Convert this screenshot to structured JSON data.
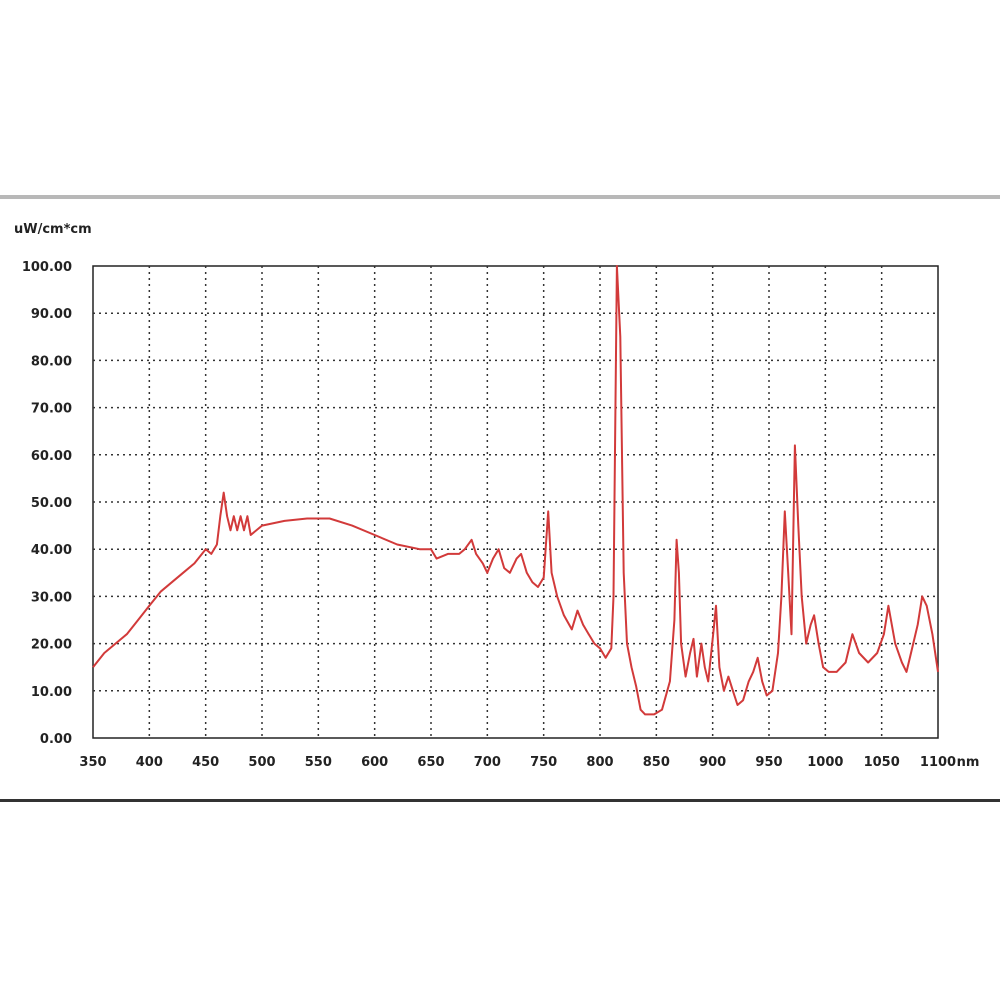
{
  "chart_data": {
    "type": "line",
    "ylabel": "uW/cm*cm",
    "xlabel": "nm",
    "xlim": [
      350,
      1100
    ],
    "ylim": [
      0,
      100
    ],
    "grid": true,
    "line_color": "#d23a3a",
    "x_ticks": [
      "350",
      "400",
      "450",
      "500",
      "550",
      "600",
      "650",
      "700",
      "750",
      "800",
      "850",
      "900",
      "950",
      "1000",
      "1050",
      "1100"
    ],
    "y_ticks": [
      "0.00",
      "10.00",
      "20.00",
      "30.00",
      "40.00",
      "50.00",
      "60.00",
      "70.00",
      "80.00",
      "90.00",
      "100.00"
    ],
    "series": [
      {
        "points": [
          [
            350,
            15
          ],
          [
            360,
            18
          ],
          [
            370,
            20
          ],
          [
            380,
            22
          ],
          [
            390,
            25
          ],
          [
            400,
            28
          ],
          [
            410,
            31
          ],
          [
            420,
            33
          ],
          [
            430,
            35
          ],
          [
            440,
            37
          ],
          [
            450,
            40
          ],
          [
            455,
            39
          ],
          [
            460,
            41
          ],
          [
            463,
            47
          ],
          [
            466,
            52
          ],
          [
            469,
            47
          ],
          [
            472,
            44
          ],
          [
            475,
            47
          ],
          [
            478,
            44
          ],
          [
            481,
            47
          ],
          [
            484,
            44
          ],
          [
            487,
            47
          ],
          [
            490,
            43
          ],
          [
            500,
            45
          ],
          [
            520,
            46
          ],
          [
            540,
            46.5
          ],
          [
            560,
            46.5
          ],
          [
            580,
            45
          ],
          [
            600,
            43
          ],
          [
            620,
            41
          ],
          [
            640,
            40
          ],
          [
            650,
            40
          ],
          [
            655,
            38
          ],
          [
            665,
            39
          ],
          [
            675,
            39
          ],
          [
            680,
            40
          ],
          [
            686,
            42
          ],
          [
            690,
            39
          ],
          [
            696,
            37
          ],
          [
            700,
            35
          ],
          [
            705,
            38
          ],
          [
            710,
            40
          ],
          [
            715,
            36
          ],
          [
            720,
            35
          ],
          [
            726,
            38
          ],
          [
            730,
            39
          ],
          [
            735,
            35
          ],
          [
            740,
            33
          ],
          [
            745,
            32
          ],
          [
            750,
            34
          ],
          [
            754,
            48
          ],
          [
            757,
            35
          ],
          [
            762,
            30
          ],
          [
            768,
            26
          ],
          [
            775,
            23
          ],
          [
            780,
            27
          ],
          [
            785,
            24
          ],
          [
            790,
            22
          ],
          [
            795,
            20
          ],
          [
            800,
            19
          ],
          [
            805,
            17
          ],
          [
            810,
            19
          ],
          [
            812,
            30
          ],
          [
            815,
            100
          ],
          [
            818,
            85
          ],
          [
            821,
            35
          ],
          [
            824,
            20
          ],
          [
            828,
            15
          ],
          [
            832,
            11
          ],
          [
            836,
            6
          ],
          [
            840,
            5
          ],
          [
            848,
            5
          ],
          [
            855,
            6
          ],
          [
            862,
            12
          ],
          [
            866,
            25
          ],
          [
            868,
            42
          ],
          [
            870,
            35
          ],
          [
            872,
            20
          ],
          [
            876,
            13
          ],
          [
            880,
            18
          ],
          [
            883,
            21
          ],
          [
            886,
            13
          ],
          [
            890,
            20
          ],
          [
            893,
            15
          ],
          [
            896,
            12
          ],
          [
            900,
            21
          ],
          [
            903,
            28
          ],
          [
            906,
            15
          ],
          [
            910,
            10
          ],
          [
            914,
            13
          ],
          [
            918,
            10
          ],
          [
            922,
            7
          ],
          [
            927,
            8
          ],
          [
            932,
            12
          ],
          [
            936,
            14
          ],
          [
            940,
            17
          ],
          [
            944,
            12
          ],
          [
            948,
            9
          ],
          [
            953,
            10
          ],
          [
            958,
            18
          ],
          [
            961,
            30
          ],
          [
            964,
            48
          ],
          [
            967,
            35
          ],
          [
            970,
            22
          ],
          [
            973,
            62
          ],
          [
            976,
            45
          ],
          [
            979,
            30
          ],
          [
            983,
            20
          ],
          [
            987,
            24
          ],
          [
            990,
            26
          ],
          [
            994,
            20
          ],
          [
            998,
            15
          ],
          [
            1003,
            14
          ],
          [
            1010,
            14
          ],
          [
            1018,
            16
          ],
          [
            1024,
            22
          ],
          [
            1030,
            18
          ],
          [
            1038,
            16
          ],
          [
            1046,
            18
          ],
          [
            1052,
            22
          ],
          [
            1056,
            28
          ],
          [
            1062,
            20
          ],
          [
            1068,
            16
          ],
          [
            1072,
            14
          ],
          [
            1076,
            18
          ],
          [
            1082,
            24
          ],
          [
            1086,
            30
          ],
          [
            1090,
            28
          ],
          [
            1095,
            22
          ],
          [
            1100,
            14
          ]
        ]
      }
    ]
  }
}
